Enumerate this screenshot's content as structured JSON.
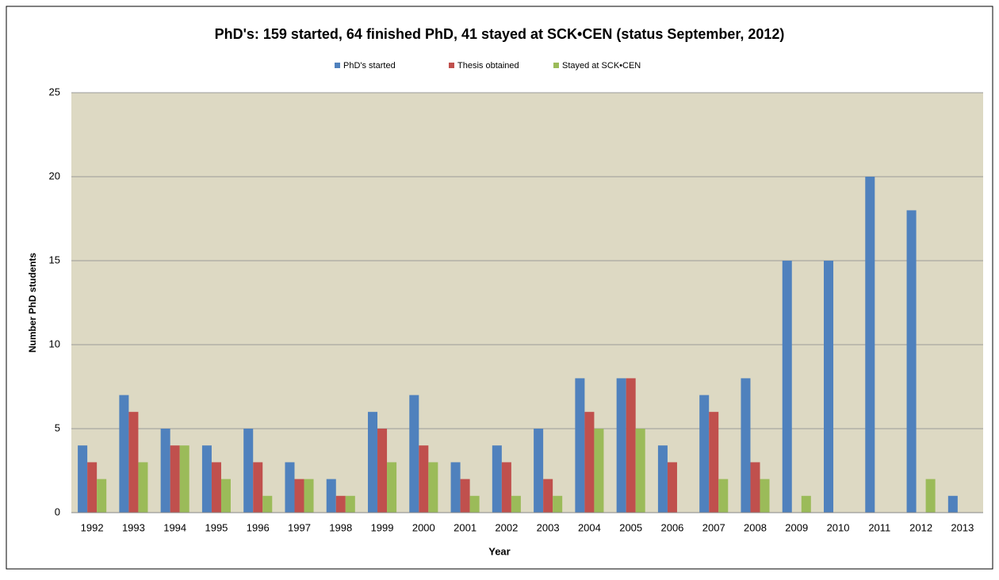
{
  "chart_data": {
    "type": "bar",
    "title": "PhD's: 159 started, 64 finished PhD, 41 stayed at SCK•CEN (status September, 2012)",
    "x_label": "Year",
    "y_label": "Number PhD students",
    "categories": [
      "1992",
      "1993",
      "1994",
      "1995",
      "1996",
      "1997",
      "1998",
      "1999",
      "2000",
      "2001",
      "2002",
      "2003",
      "2004",
      "2005",
      "2006",
      "2007",
      "2008",
      "2009",
      "2010",
      "2011",
      "2012",
      "2013"
    ],
    "series": [
      {
        "name": "PhD's started",
        "color": "#4f81bd",
        "values": [
          4,
          7,
          5,
          4,
          5,
          3,
          2,
          6,
          7,
          3,
          4,
          5,
          8,
          8,
          4,
          7,
          8,
          15,
          15,
          20,
          18,
          1
        ]
      },
      {
        "name": "Thesis obtained",
        "color": "#c0504d",
        "values": [
          3,
          6,
          4,
          3,
          3,
          2,
          1,
          5,
          4,
          2,
          3,
          2,
          6,
          8,
          3,
          6,
          3,
          0,
          0,
          0,
          0,
          0
        ]
      },
      {
        "name": "Stayed at SCK•CEN",
        "color": "#9bbb59",
        "values": [
          2,
          3,
          4,
          2,
          1,
          2,
          1,
          3,
          3,
          1,
          1,
          1,
          5,
          5,
          0,
          2,
          2,
          1,
          0,
          0,
          2,
          0
        ]
      }
    ],
    "ylim": [
      0,
      25
    ],
    "yticks": [
      0,
      5,
      10,
      15,
      20,
      25
    ],
    "grid": true,
    "legend": "top"
  }
}
